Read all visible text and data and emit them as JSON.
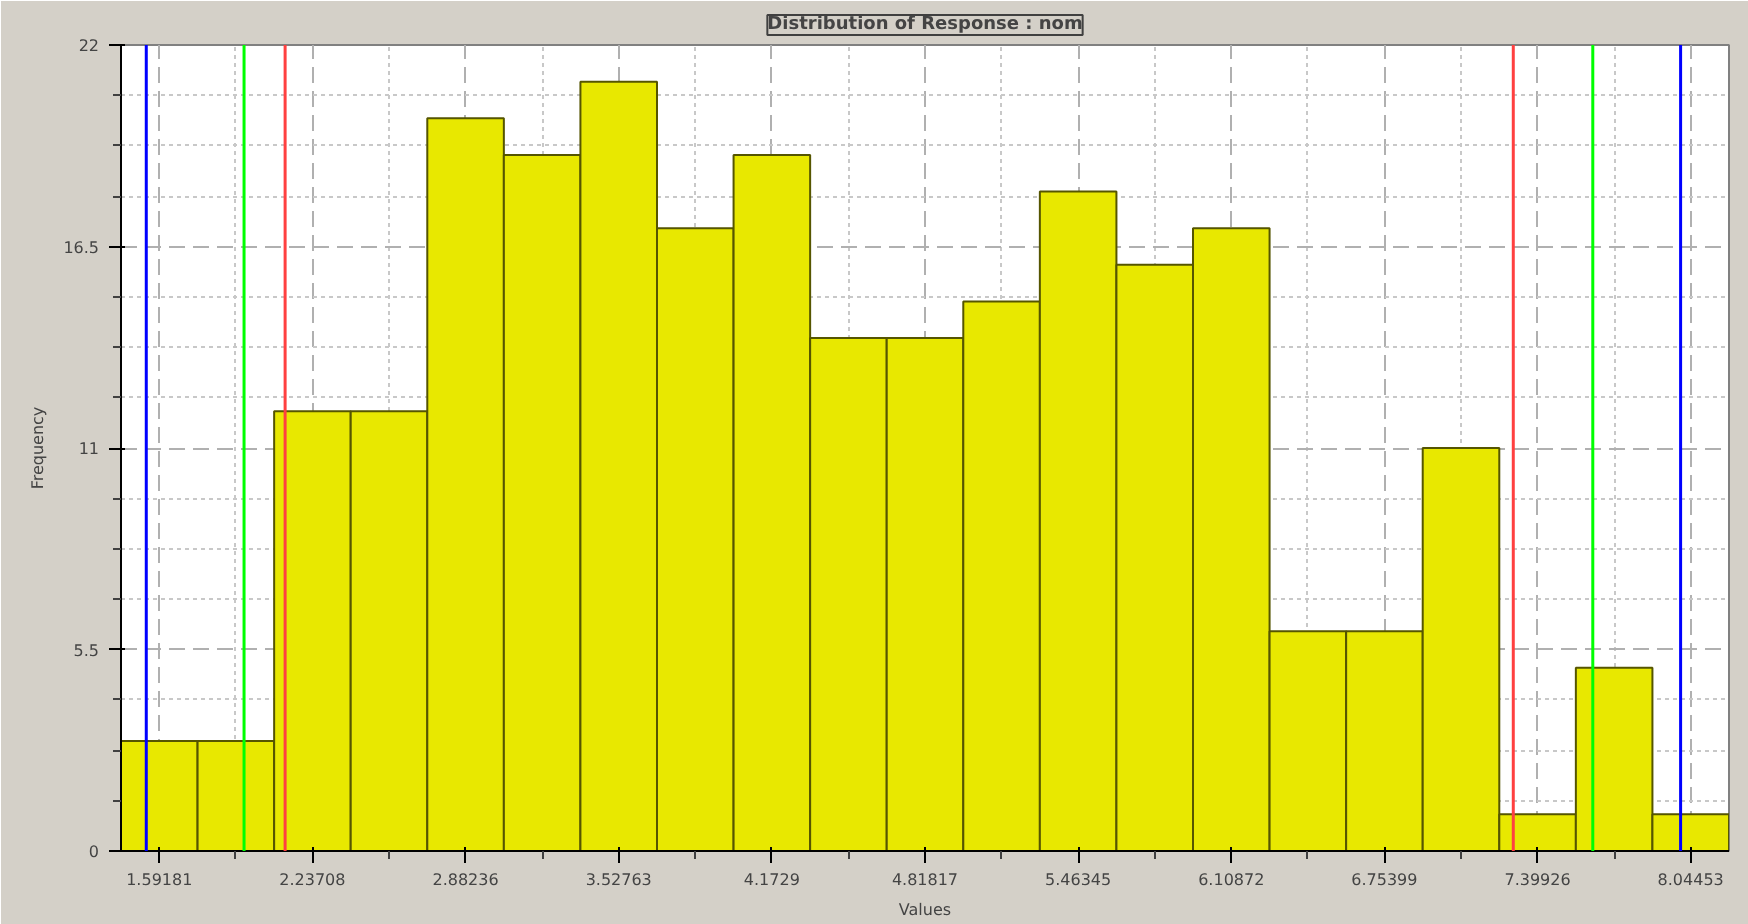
{
  "chart_data": {
    "type": "histogram",
    "title": "Distribution of Response : nom",
    "xlabel": "Values",
    "ylabel": "Frequency",
    "bins": [
      1.4305,
      1.75314,
      2.07578,
      2.39842,
      2.72106,
      3.0437,
      3.36634,
      3.68898,
      4.01162,
      4.33426,
      4.6569,
      4.97954,
      5.30218,
      5.62482,
      5.94746,
      6.2701,
      6.59274,
      6.91538,
      7.23802,
      7.56066,
      7.8833,
      8.20594
    ],
    "values": [
      3,
      3,
      12,
      12,
      20,
      19,
      21,
      17,
      19,
      14,
      14,
      15,
      18,
      16,
      17,
      6,
      6,
      11,
      1,
      5,
      1
    ],
    "color": "#e8e800",
    "xlim": [
      1.4305,
      8.20594
    ],
    "ylim": [
      0,
      22
    ],
    "xticks": [
      1.59181,
      2.23708,
      2.88236,
      3.52763,
      4.1729,
      4.81817,
      5.46345,
      6.10872,
      6.75399,
      7.39926,
      8.04453
    ],
    "yticks": [
      0,
      5.5,
      11,
      16.5,
      22
    ],
    "grid": true,
    "ref_lines": [
      {
        "axis": "x",
        "value": 1.537,
        "color": "#0000ff"
      },
      {
        "axis": "x",
        "value": 8.002,
        "color": "#0000ff"
      },
      {
        "axis": "x",
        "value": 1.949,
        "color": "#00ff00"
      },
      {
        "axis": "x",
        "value": 7.632,
        "color": "#00ff00"
      },
      {
        "axis": "x",
        "value": 2.122,
        "color": "#ff4040"
      },
      {
        "axis": "x",
        "value": 7.297,
        "color": "#ff4040"
      }
    ]
  }
}
